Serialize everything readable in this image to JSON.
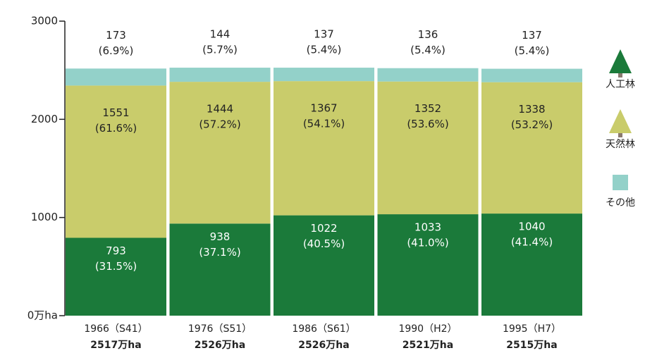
{
  "chart_data": {
    "type": "stacked-bar",
    "categories": [
      "1966（S41）",
      "1976（S51）",
      "1986（S61）",
      "1990（H2）",
      "1995（H7）"
    ],
    "category_sublabels": [
      "2517万ha",
      "2526万ha",
      "2526万ha",
      "2521万ha",
      "2515万ha"
    ],
    "series": [
      {
        "name": "人工林",
        "color": "#1b7a3a",
        "values": [
          793,
          938,
          1022,
          1033,
          1040
        ],
        "shares": [
          31.5,
          37.1,
          40.5,
          41.0,
          41.4
        ],
        "share_labels": [
          "(31.5%)",
          "(37.1%)",
          "(40.5%)",
          "(41.0%)",
          "(41.4%)"
        ]
      },
      {
        "name": "天然林",
        "color": "#c9cc6b",
        "values": [
          1551,
          1444,
          1367,
          1352,
          1338
        ],
        "shares": [
          61.6,
          57.2,
          54.1,
          53.6,
          53.2
        ],
        "share_labels": [
          "(61.6%)",
          "(57.2%)",
          "(54.1%)",
          "(53.6%)",
          "(53.2%)"
        ]
      },
      {
        "name": "その他",
        "color": "#93d1c9",
        "values": [
          173,
          144,
          137,
          136,
          137
        ],
        "shares": [
          6.9,
          5.7,
          5.4,
          5.4,
          5.4
        ],
        "share_labels": [
          "(6.9%)",
          "(5.7%)",
          "(5.4%)",
          "(5.4%)",
          "(5.4%)"
        ]
      }
    ],
    "ylim": [
      0,
      3000
    ],
    "yticks": [
      {
        "value": 0,
        "label": "0万ha"
      },
      1000,
      2000,
      3000
    ]
  }
}
